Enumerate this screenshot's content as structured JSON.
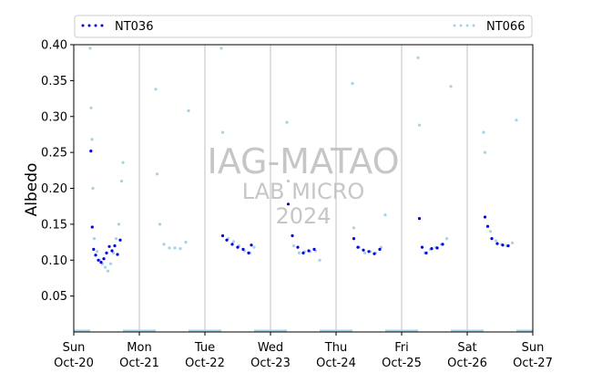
{
  "chart_data": {
    "type": "scatter",
    "ylabel": "Albedo",
    "ylim": [
      0.0,
      0.4
    ],
    "yticks": [
      "0.05",
      "0.10",
      "0.15",
      "0.20",
      "0.25",
      "0.30",
      "0.35",
      "0.40"
    ],
    "xlim": [
      "2024-10-20",
      "2024-10-27"
    ],
    "xticks": [
      {
        "day": "Sun",
        "date": "Oct-20"
      },
      {
        "day": "Mon",
        "date": "Oct-21"
      },
      {
        "day": "Tue",
        "date": "Oct-22"
      },
      {
        "day": "Wed",
        "date": "Oct-23"
      },
      {
        "day": "Thu",
        "date": "Oct-24"
      },
      {
        "day": "Fri",
        "date": "Oct-25"
      },
      {
        "day": "Sat",
        "date": "Oct-26"
      },
      {
        "day": "Sun",
        "date": "Oct-27"
      }
    ],
    "grid": "vertical",
    "legend_position": "top",
    "watermark": {
      "line1": "IAG-MATAO",
      "line2": "LAB MICRO",
      "line3": "2024"
    },
    "series": [
      {
        "name": "NT036",
        "color": "#0000dd",
        "marker": "dot",
        "x": [
          "Oct-20 06:15",
          "Oct-20 06:45",
          "Oct-20 07:15",
          "Oct-20 08:00",
          "Oct-20 09:00",
          "Oct-20 10:00",
          "Oct-20 11:00",
          "Oct-20 12:00",
          "Oct-20 13:00",
          "Oct-20 14:00",
          "Oct-20 15:00",
          "Oct-20 16:00",
          "Oct-20 17:00",
          "Oct-22 06:30",
          "Oct-22 08:00",
          "Oct-22 10:00",
          "Oct-22 12:00",
          "Oct-22 14:00",
          "Oct-22 16:00",
          "Oct-22 17:00",
          "Oct-23 06:30",
          "Oct-23 08:00",
          "Oct-23 10:00",
          "Oct-23 12:00",
          "Oct-23 14:00",
          "Oct-23 16:00",
          "Oct-24 06:30",
          "Oct-24 08:00",
          "Oct-24 10:00",
          "Oct-24 12:00",
          "Oct-24 14:00",
          "Oct-24 16:00",
          "Oct-25 06:30",
          "Oct-25 07:30",
          "Oct-25 09:00",
          "Oct-25 11:00",
          "Oct-25 13:00",
          "Oct-25 15:00",
          "Oct-26 06:30",
          "Oct-26 07:30",
          "Oct-26 09:00",
          "Oct-26 11:00",
          "Oct-26 13:00",
          "Oct-26 15:00"
        ],
        "y": [
          0.252,
          0.146,
          0.115,
          0.107,
          0.1,
          0.097,
          0.102,
          0.11,
          0.119,
          0.113,
          0.12,
          0.108,
          0.128,
          0.134,
          0.128,
          0.122,
          0.118,
          0.115,
          0.11,
          0.121,
          0.178,
          0.134,
          0.118,
          0.11,
          0.113,
          0.115,
          0.13,
          0.118,
          0.114,
          0.112,
          0.109,
          0.115,
          0.158,
          0.118,
          0.11,
          0.116,
          0.117,
          0.122,
          0.16,
          0.147,
          0.13,
          0.123,
          0.121,
          0.12
        ]
      },
      {
        "name": "NT066",
        "color": "#a6d2e6",
        "marker": "dot",
        "x": [
          "Oct-20 06:00",
          "Oct-20 06:20",
          "Oct-20 06:40",
          "Oct-20 07:00",
          "Oct-20 07:30",
          "Oct-20 08:30",
          "Oct-20 09:30",
          "Oct-20 10:30",
          "Oct-20 11:30",
          "Oct-20 12:30",
          "Oct-20 13:30",
          "Oct-20 14:30",
          "Oct-20 15:30",
          "Oct-20 16:30",
          "Oct-20 17:30",
          "Oct-20 18:00",
          "Oct-21 06:00",
          "Oct-21 06:30",
          "Oct-21 07:30",
          "Oct-21 09:00",
          "Oct-21 11:00",
          "Oct-21 13:00",
          "Oct-21 15:00",
          "Oct-21 17:00",
          "Oct-21 18:00",
          "Oct-22 06:00",
          "Oct-22 06:30",
          "Oct-22 08:30",
          "Oct-22 10:30",
          "Oct-22 12:30",
          "Oct-22 14:30",
          "Oct-22 16:30",
          "Oct-22 18:00",
          "Oct-23 06:00",
          "Oct-23 06:30",
          "Oct-23 08:30",
          "Oct-23 10:30",
          "Oct-23 12:30",
          "Oct-23 14:30",
          "Oct-23 16:30",
          "Oct-23 18:00",
          "Oct-24 06:00",
          "Oct-24 06:30",
          "Oct-24 08:30",
          "Oct-24 10:30",
          "Oct-24 12:30",
          "Oct-24 14:30",
          "Oct-24 16:30",
          "Oct-24 18:00",
          "Oct-25 06:00",
          "Oct-25 06:30",
          "Oct-25 08:30",
          "Oct-25 10:30",
          "Oct-25 12:30",
          "Oct-25 14:30",
          "Oct-25 16:30",
          "Oct-25 18:00",
          "Oct-26 06:00",
          "Oct-26 06:30",
          "Oct-26 08:30",
          "Oct-26 10:30",
          "Oct-26 12:30",
          "Oct-26 14:30",
          "Oct-26 16:30",
          "Oct-26 18:00"
        ],
        "y": [
          0.395,
          0.312,
          0.268,
          0.2,
          0.13,
          0.112,
          0.1,
          0.095,
          0.09,
          0.085,
          0.095,
          0.11,
          0.13,
          0.15,
          0.21,
          0.236,
          0.338,
          0.22,
          0.15,
          0.122,
          0.117,
          0.117,
          0.116,
          0.125,
          0.308,
          0.395,
          0.278,
          0.13,
          0.126,
          0.12,
          0.113,
          0.11,
          0.118,
          0.292,
          0.21,
          0.12,
          0.11,
          0.112,
          0.112,
          0.113,
          0.1,
          0.346,
          0.145,
          0.118,
          0.11,
          0.112,
          0.11,
          0.118,
          0.163,
          0.382,
          0.288,
          0.11,
          0.115,
          0.118,
          0.122,
          0.13,
          0.342,
          0.278,
          0.25,
          0.14,
          0.127,
          0.122,
          0.12,
          0.124,
          0.295
        ]
      }
    ]
  }
}
